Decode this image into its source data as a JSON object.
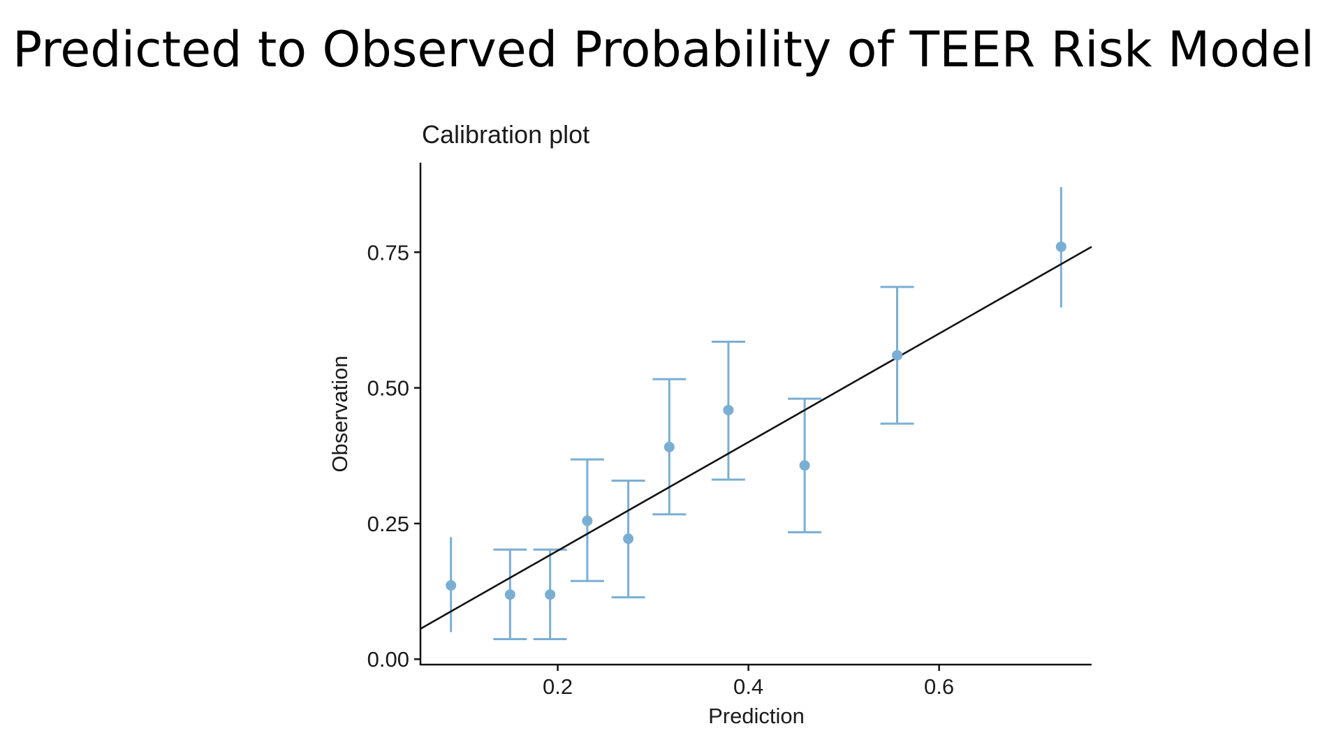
{
  "slide": {
    "title": "Predicted to Observed Probability of TEER Risk Model"
  },
  "chart_data": {
    "type": "scatter",
    "title": "Calibration plot",
    "xlabel": "Prediction",
    "ylabel": "Observation",
    "xlim": [
      0.056,
      0.76
    ],
    "ylim": [
      -0.01,
      0.915
    ],
    "xticks": [
      {
        "value": 0.2,
        "label": "0.2"
      },
      {
        "value": 0.4,
        "label": "0.4"
      },
      {
        "value": 0.6,
        "label": "0.6"
      }
    ],
    "yticks": [
      {
        "value": 0.0,
        "label": "0.00"
      },
      {
        "value": 0.25,
        "label": "0.25"
      },
      {
        "value": 0.5,
        "label": "0.50"
      },
      {
        "value": 0.75,
        "label": "0.75"
      }
    ],
    "grid": false,
    "legend": "none",
    "point_color": "#7aaed3",
    "line_color": "#111111",
    "reference_line": {
      "from": [
        0.056,
        0.056
      ],
      "to": [
        0.76,
        0.76
      ]
    },
    "series": [
      {
        "points": [
          {
            "x": 0.088,
            "y": 0.136,
            "lower": 0.05,
            "upper": 0.225,
            "capped": false
          },
          {
            "x": 0.15,
            "y": 0.119,
            "lower": 0.037,
            "upper": 0.202,
            "capped": true
          },
          {
            "x": 0.192,
            "y": 0.119,
            "lower": 0.037,
            "upper": 0.202,
            "capped": true
          },
          {
            "x": 0.231,
            "y": 0.255,
            "lower": 0.144,
            "upper": 0.368,
            "capped": true
          },
          {
            "x": 0.274,
            "y": 0.222,
            "lower": 0.114,
            "upper": 0.329,
            "capped": true
          },
          {
            "x": 0.317,
            "y": 0.391,
            "lower": 0.267,
            "upper": 0.516,
            "capped": true
          },
          {
            "x": 0.379,
            "y": 0.459,
            "lower": 0.331,
            "upper": 0.585,
            "capped": true
          },
          {
            "x": 0.459,
            "y": 0.357,
            "lower": 0.234,
            "upper": 0.48,
            "capped": true
          },
          {
            "x": 0.556,
            "y": 0.56,
            "lower": 0.434,
            "upper": 0.686,
            "capped": true
          },
          {
            "x": 0.728,
            "y": 0.76,
            "lower": 0.648,
            "upper": 0.87,
            "capped": false
          }
        ]
      }
    ]
  }
}
